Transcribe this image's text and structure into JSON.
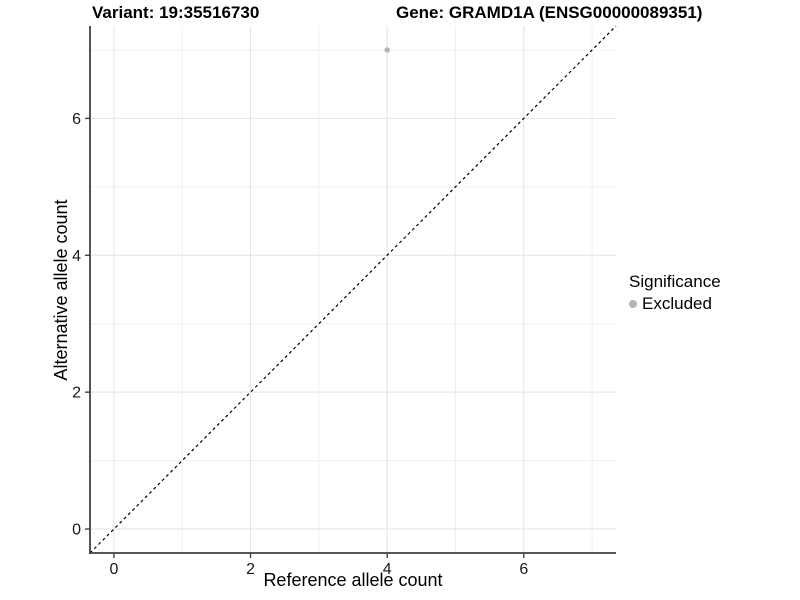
{
  "header": {
    "left_title": "Variant: 19:35516730",
    "right_title": "Gene: GRAMD1A (ENSG00000089351)"
  },
  "chart_data": {
    "type": "scatter",
    "title_left": "Variant: 19:35516730",
    "title_right": "Gene: GRAMD1A (ENSG00000089351)",
    "xlabel": "Reference allele count",
    "ylabel": "Alternative allele count",
    "xlim": [
      -0.35,
      7.35
    ],
    "ylim": [
      -0.35,
      7.35
    ],
    "x_major_ticks": [
      0,
      2,
      4,
      6
    ],
    "y_major_ticks": [
      0,
      2,
      4,
      6
    ],
    "x_minor_gridlines": [
      1,
      3,
      5,
      7
    ],
    "y_minor_gridlines": [
      1,
      3,
      5,
      7
    ],
    "grid": true,
    "series": [
      {
        "name": "Excluded",
        "color": "#b5b5b5",
        "points": [
          {
            "x": 4,
            "y": 7
          }
        ]
      }
    ],
    "reference_line": {
      "kind": "identity",
      "from": [
        -0.35,
        -0.35
      ],
      "to": [
        7.35,
        7.35
      ],
      "style": "dashed",
      "color": "#000000"
    },
    "colors": {
      "major_grid": "#e3e3e3",
      "minor_grid": "#f0f0f0",
      "axis_line": "#404040",
      "tick_label": "#1a1a1a",
      "point": "#b5b5b5"
    },
    "legend_position": "right"
  },
  "legend": {
    "title": "Significance",
    "items": [
      {
        "label": "Excluded",
        "color": "#b5b5b5"
      }
    ]
  }
}
